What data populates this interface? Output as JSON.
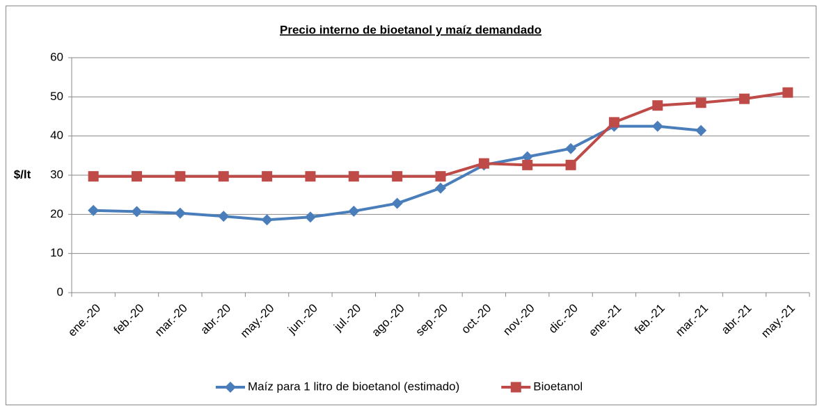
{
  "chart_data": {
    "type": "line",
    "title": "Precio interno de bioetanol y maíz demandado",
    "y_label": "$/lt",
    "categories": [
      "ene.-20",
      "feb.-20",
      "mar.-20",
      "abr.-20",
      "may.-20",
      "jun.-20",
      "jul.-20",
      "ago.-20",
      "sep.-20",
      "oct.-20",
      "nov.-20",
      "dic.-20",
      "ene.-21",
      "feb.-21",
      "mar.-21",
      "abr.-21",
      "may.-21"
    ],
    "series": [
      {
        "name": "Maíz para 1 litro de bioetanol (estimado)",
        "color": "#4a7ebb",
        "marker": "diamond",
        "values": [
          21,
          20.7,
          20.3,
          19.5,
          18.6,
          19.3,
          20.8,
          22.8,
          26.7,
          32.6,
          34.7,
          36.8,
          42.5,
          42.5,
          41.4,
          null,
          null
        ]
      },
      {
        "name": "Bioetanol",
        "color": "#be4b48",
        "marker": "square",
        "values": [
          29.7,
          29.7,
          29.7,
          29.7,
          29.7,
          29.7,
          29.7,
          29.7,
          29.7,
          33,
          32.6,
          32.6,
          43.5,
          47.8,
          48.5,
          49.5,
          51.1
        ]
      }
    ],
    "ylim": [
      0,
      60
    ],
    "yticks": [
      0,
      10,
      20,
      30,
      40,
      50,
      60
    ],
    "grid": true,
    "legend": "bottom"
  }
}
